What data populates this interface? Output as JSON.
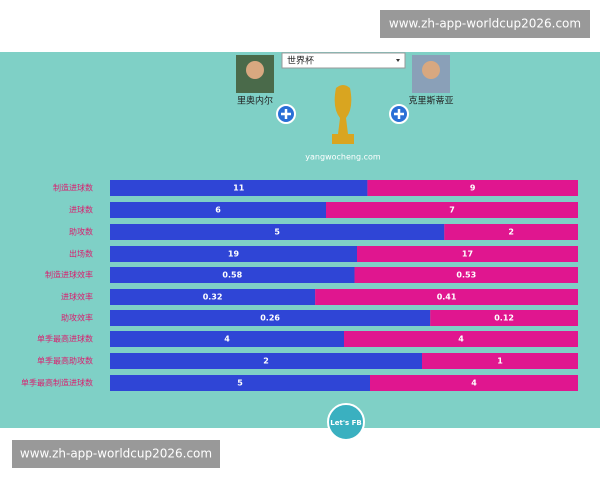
{
  "watermark_top": "www.zh-app-worldcup2026.com",
  "watermark_bottom": "www.zh-app-worldcup2026.com",
  "header": {
    "left_player": "里奥内尔",
    "right_player": "克里斯蒂亚",
    "dropdown": "世界杯",
    "site": "yangwocheng.com"
  },
  "rows": [
    {
      "label": "制造进球数",
      "left": 11,
      "right": 9
    },
    {
      "label": "进球数",
      "left": 6,
      "right": 7
    },
    {
      "label": "助攻数",
      "left": 5,
      "right": 2
    },
    {
      "label": "出场数",
      "left": 19,
      "right": 17
    },
    {
      "label": "制造进球效率",
      "left": 0.58,
      "right": 0.53
    },
    {
      "label": "进球效率",
      "left": 0.32,
      "right": 0.41
    },
    {
      "label": "助攻效率",
      "left": 0.26,
      "right": 0.12
    },
    {
      "label": "单季最高进球数",
      "left": 4,
      "right": 4
    },
    {
      "label": "单季最高助攻数",
      "left": 2,
      "right": 1
    },
    {
      "label": "单季最高制造进球数",
      "left": 5,
      "right": 4
    }
  ],
  "footer_logo": "Let's FB"
}
